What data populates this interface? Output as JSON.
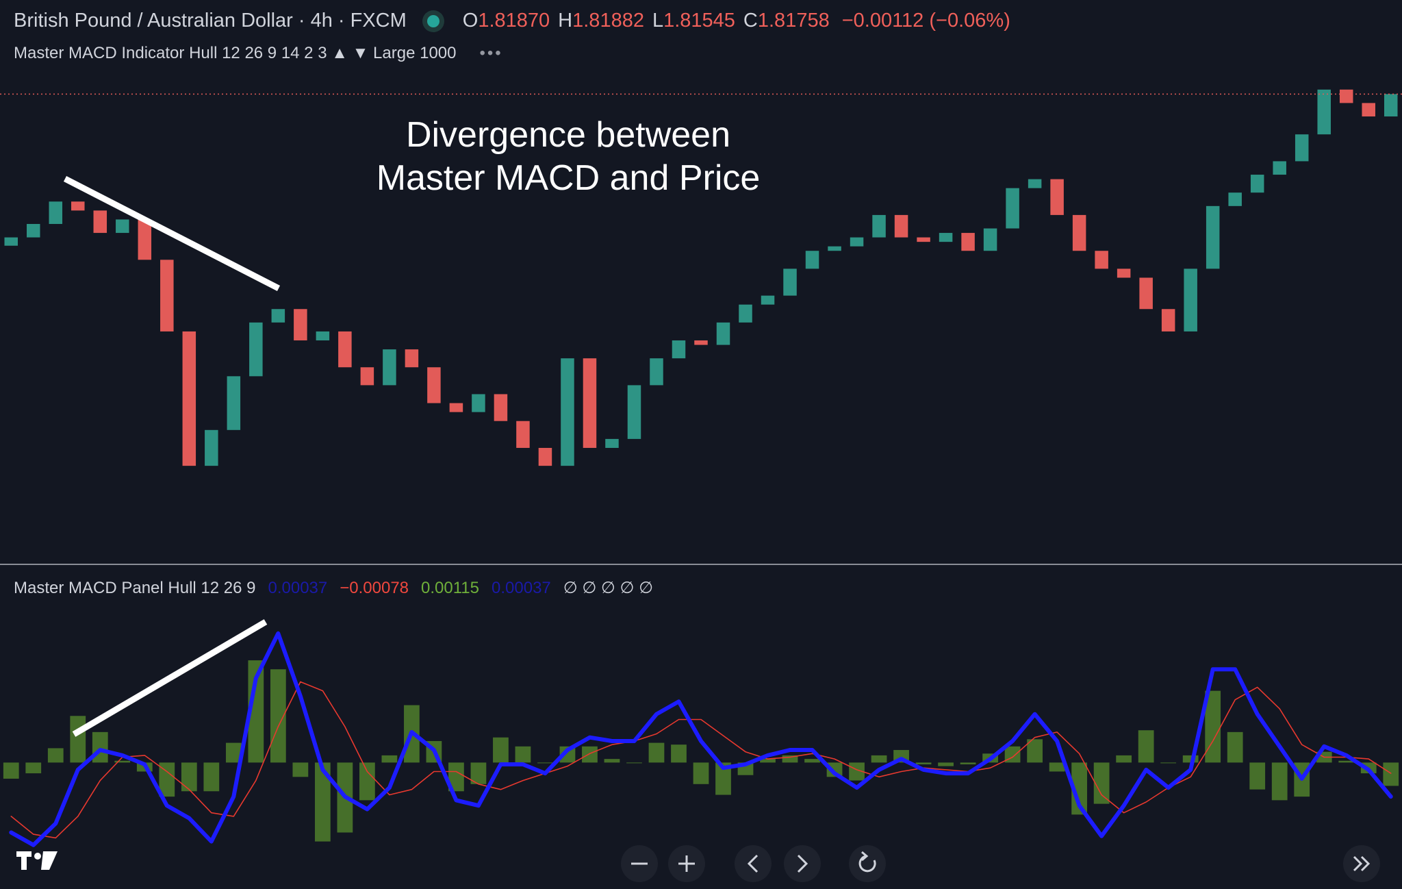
{
  "header": {
    "symbol": "British Pound / Australian Dollar · 4h · FXCM",
    "ohlc": [
      {
        "key": "O",
        "value": "1.81870"
      },
      {
        "key": "H",
        "value": "1.81882"
      },
      {
        "key": "L",
        "value": "1.81545"
      },
      {
        "key": "C",
        "value": "1.81758"
      }
    ],
    "change": "−0.00112 (−0.06%)",
    "indicator": "Master MACD Indicator Hull 12 26 9 14 2 3 ▲ ▼ Large 1000",
    "more": "•••"
  },
  "annotation": [
    "Divergence between",
    "Master MACD and Price"
  ],
  "chart_data": [
    {
      "type": "candlestick",
      "up_color": "#2e9485",
      "down_color": "#e25b58",
      "price_line": true,
      "ylim": [
        1.7805,
        1.8246
      ],
      "open": [
        1.8054,
        1.80605,
        1.8071,
        1.80885,
        1.80815,
        1.8064,
        1.80745,
        1.8043,
        1.7987,
        1.7882,
        1.791,
        1.7952,
        1.7994,
        1.80045,
        1.798,
        1.7987,
        1.7959,
        1.7945,
        1.7973,
        1.7959,
        1.7931,
        1.7924,
        1.7938,
        1.7917,
        1.7896,
        1.7882,
        1.7966,
        1.7896,
        1.7903,
        1.7945,
        1.7966,
        1.798,
        1.79765,
        1.7994,
        1.8008,
        1.8015,
        1.8036,
        1.805,
        1.80535,
        1.80605,
        1.8078,
        1.80605,
        1.8057,
        1.8064,
        1.805,
        1.80675,
        1.8099,
        1.8106,
        1.8078,
        1.805,
        1.8036,
        1.8029,
        1.80045,
        1.7987,
        1.8036,
        1.8085,
        1.80955,
        1.81095,
        1.812,
        1.8141,
        1.8176,
        1.81655,
        1.8155
      ],
      "close": [
        1.80605,
        1.8071,
        1.80885,
        1.80815,
        1.8064,
        1.80745,
        1.8043,
        1.7987,
        1.7882,
        1.791,
        1.7952,
        1.7994,
        1.80045,
        1.798,
        1.7987,
        1.7959,
        1.7945,
        1.7973,
        1.7959,
        1.7931,
        1.7924,
        1.7938,
        1.7917,
        1.7896,
        1.7882,
        1.7966,
        1.7896,
        1.7903,
        1.7945,
        1.7966,
        1.798,
        1.79765,
        1.7994,
        1.8008,
        1.8015,
        1.8036,
        1.805,
        1.80535,
        1.80605,
        1.8078,
        1.80605,
        1.8057,
        1.8064,
        1.805,
        1.80675,
        1.8099,
        1.8106,
        1.8078,
        1.805,
        1.8036,
        1.8029,
        1.80045,
        1.7987,
        1.8036,
        1.8085,
        1.80955,
        1.81095,
        1.812,
        1.8141,
        1.8176,
        1.81655,
        1.8155,
        1.81725
      ]
    },
    {
      "type": "macd",
      "title": "Master MACD Panel Hull 12 26 9",
      "status": [
        {
          "text": "0.00037",
          "color": "#1a1aa8"
        },
        {
          "text": "−0.00078",
          "color": "#f0483e"
        },
        {
          "text": "0.00115",
          "color": "#6fb03a"
        },
        {
          "text": "0.00037",
          "color": "#1a1aa8"
        },
        {
          "text": "∅ ∅ ∅ ∅ ∅",
          "color": "#d1d4dc"
        }
      ],
      "ylim": [
        -0.000705,
        0.001105
      ],
      "histogram": {
        "color": "#466f2a",
        "values": [
          -9e-05,
          -6e-05,
          8e-05,
          0.00026,
          0.00017,
          1e-05,
          -5e-05,
          -0.00019,
          -0.00016,
          -0.00016,
          0.00011,
          0.00057,
          0.00052,
          -8e-05,
          -0.00044,
          -0.00039,
          -0.00021,
          4e-05,
          0.00032,
          0.00012,
          -0.00016,
          -0.00012,
          0.00014,
          9e-05,
          0.0,
          9e-05,
          9e-05,
          2e-05,
          0.0,
          0.00011,
          0.0001,
          -0.00012,
          -0.00018,
          -7e-05,
          2e-05,
          4e-05,
          2e-05,
          -8e-05,
          -0.0001,
          4e-05,
          7e-05,
          -1e-05,
          -2e-05,
          -1e-05,
          5e-05,
          9e-05,
          0.00013,
          -5e-05,
          -0.00029,
          -0.00023,
          4e-05,
          0.00018,
          0.0,
          4e-05,
          0.0004,
          0.00017,
          -0.00015,
          -0.00021,
          -0.00019,
          6e-05,
          1e-05,
          -6e-05,
          -0.00013
        ]
      },
      "series": [
        {
          "color": "#1c1cff",
          "width": 6,
          "values": [
            -0.00039,
            -0.00046,
            -0.00034,
            -4e-05,
            7e-05,
            4e-05,
            -1e-05,
            -0.00024,
            -0.00031,
            -0.00044,
            -0.00019,
            0.00047,
            0.00072,
            0.00037,
            -4e-05,
            -0.00019,
            -0.00026,
            -0.00014,
            0.00017,
            7e-05,
            -0.00021,
            -0.00024,
            -1e-05,
            -1e-05,
            -6e-05,
            7e-05,
            0.00014,
            0.00012,
            0.00012,
            0.00027,
            0.00034,
            0.00012,
            -3e-05,
            -1e-05,
            4e-05,
            7e-05,
            7e-05,
            -6e-05,
            -0.00014,
            -4e-05,
            2e-05,
            -4e-05,
            -6e-05,
            -6e-05,
            2e-05,
            0.00012,
            0.00027,
            0.00012,
            -0.00024,
            -0.00041,
            -0.00024,
            -4e-05,
            -0.00014,
            -4e-05,
            0.00052,
            0.00052,
            0.00027,
            9e-05,
            -9e-05,
            9e-05,
            4e-05,
            -4e-05,
            -0.00019
          ]
        },
        {
          "color": "#e8392f",
          "width": 1.6,
          "values": [
            -0.0003,
            -0.0004,
            -0.00042,
            -0.0003,
            -0.0001,
            3e-05,
            4e-05,
            -5e-05,
            -0.00015,
            -0.00028,
            -0.0003,
            -0.0001,
            0.0002,
            0.00045,
            0.0004,
            0.0002,
            -5e-05,
            -0.00018,
            -0.00015,
            -5e-05,
            -5e-05,
            -0.00012,
            -0.00015,
            -0.0001,
            -6e-05,
            -2e-05,
            5e-05,
            0.0001,
            0.00012,
            0.00016,
            0.00024,
            0.00024,
            0.00015,
            6e-05,
            2e-05,
            3e-05,
            5e-05,
            2e-05,
            -4e-05,
            -8e-05,
            -5e-05,
            -3e-05,
            -4e-05,
            -5e-05,
            -3e-05,
            3e-05,
            0.00014,
            0.00017,
            5e-05,
            -0.00018,
            -0.00028,
            -0.00022,
            -0.00014,
            -8e-05,
            0.00012,
            0.00035,
            0.00042,
            0.0003,
            0.0001,
            3e-05,
            3e-05,
            2e-05,
            -6e-05
          ]
        }
      ]
    }
  ]
}
